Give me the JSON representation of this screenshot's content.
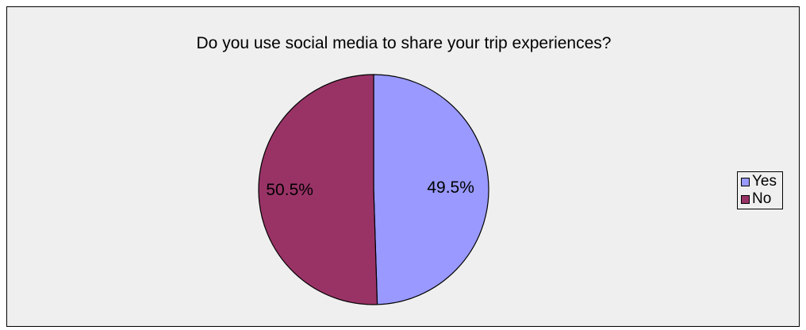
{
  "chart_data": {
    "type": "pie",
    "title": "Do you use social media to share your trip experiences?",
    "categories": [
      "Yes",
      "No"
    ],
    "values": [
      49.5,
      50.5
    ],
    "data_labels": [
      "49.5%",
      "50.5%"
    ],
    "colors": [
      "#9999ff",
      "#993366"
    ],
    "legend_placement": "right",
    "background_color": "#efefef"
  }
}
